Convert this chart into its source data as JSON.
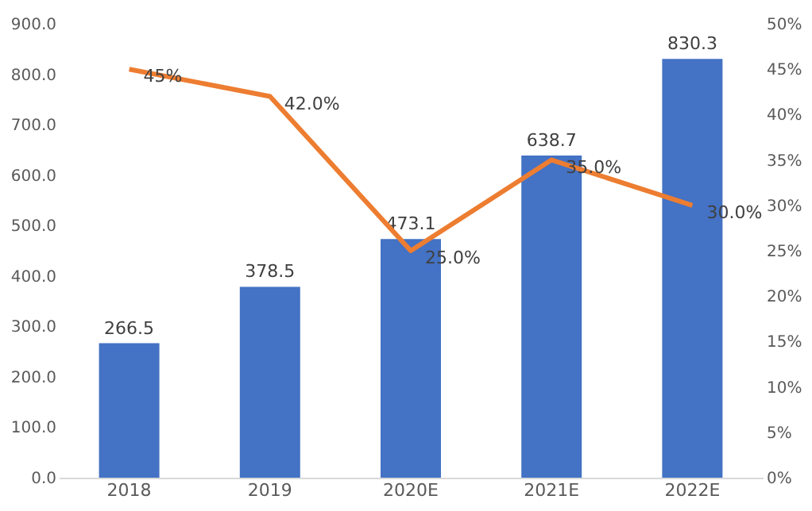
{
  "chart_data": {
    "type": "bar",
    "categories": [
      "2018",
      "2019",
      "2020E",
      "2021E",
      "2022E"
    ],
    "series": [
      {
        "color": "#4472c4",
        "values": [
          266.5,
          378.5,
          473.1,
          638.7,
          830.3
        ],
        "value_labels": [
          "266.5",
          "378.5",
          "473.1",
          "638.7",
          "830.3"
        ]
      },
      {
        "type": "line",
        "axis": "y2",
        "color": "#ed7d31",
        "values": [
          45,
          42,
          25,
          35,
          30
        ],
        "value_labels": [
          "45%",
          "42.0%",
          "25.0%",
          "35.0%",
          "30.0%"
        ]
      }
    ],
    "ylim": [
      0,
      900
    ],
    "yticks": [
      {
        "value": 0,
        "label": "0.0"
      },
      {
        "value": 100,
        "label": "100.0"
      },
      {
        "value": 200,
        "label": "200.0"
      },
      {
        "value": 300,
        "label": "300.0"
      },
      {
        "value": 400,
        "label": "400.0"
      },
      {
        "value": 500,
        "label": "500.0"
      },
      {
        "value": 600,
        "label": "600.0"
      },
      {
        "value": 700,
        "label": "700.0"
      },
      {
        "value": 800,
        "label": "800.0"
      },
      {
        "value": 900,
        "label": "900.0"
      }
    ],
    "y2lim": [
      0,
      50
    ],
    "y2ticks": [
      {
        "value": 0,
        "label": "0%"
      },
      {
        "value": 5,
        "label": "5%"
      },
      {
        "value": 10,
        "label": "10%"
      },
      {
        "value": 15,
        "label": "15%"
      },
      {
        "value": 20,
        "label": "20%"
      },
      {
        "value": 25,
        "label": "25%"
      },
      {
        "value": 30,
        "label": "30%"
      },
      {
        "value": 35,
        "label": "35%"
      },
      {
        "value": 40,
        "label": "40%"
      },
      {
        "value": 45,
        "label": "45%"
      },
      {
        "value": 50,
        "label": "50%"
      }
    ],
    "grid": false,
    "legend": false,
    "marker": "none",
    "line_style": "solid"
  }
}
